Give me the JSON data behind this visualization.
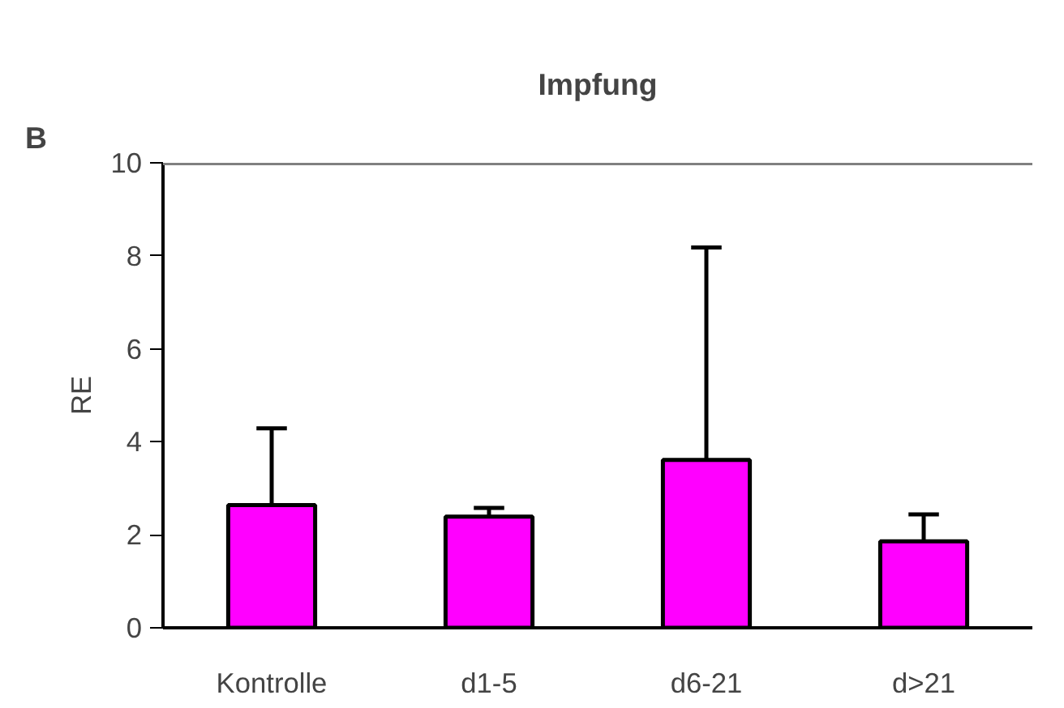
{
  "chart_data": {
    "type": "bar",
    "title": "Impfung",
    "ylabel": "RE",
    "annotations": [
      "B"
    ],
    "categories": [
      "Kontrolle",
      "d1-5",
      "d6-21",
      "d>21"
    ],
    "values": [
      2.64,
      2.39,
      3.61,
      1.86
    ],
    "errors": [
      [
        2.64,
        4.29
      ],
      [
        2.39,
        2.58
      ],
      [
        3.61,
        8.18
      ],
      [
        1.86,
        2.44
      ]
    ],
    "color": "#ff00ff",
    "ylim": [
      0,
      10
    ],
    "yticks": [
      0,
      2,
      4,
      6,
      8,
      10
    ],
    "grid": false
  }
}
